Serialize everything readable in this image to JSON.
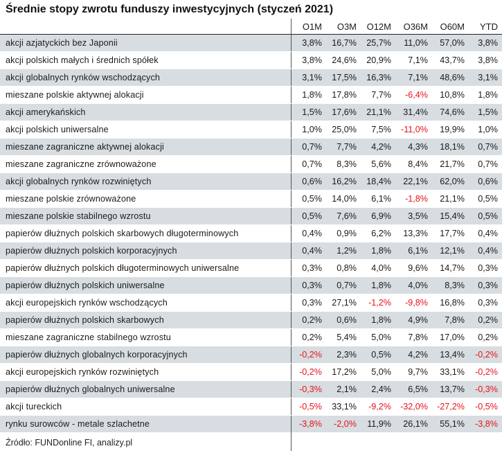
{
  "title": "Średnie stopy zwrotu funduszy inwestycyjnych (styczeń 2021)",
  "source": "Źródło: FUNDonline FI, analizy.pl",
  "colors": {
    "row_shade": "#d7dde1",
    "negative": "#e8131b",
    "text": "#1a1a1a"
  },
  "chart_data": {
    "type": "table",
    "title": "Średnie stopy zwrotu funduszy inwestycyjnych (styczeń 2021)",
    "columns": [
      "",
      "O1M",
      "O3M",
      "O12M",
      "O36M",
      "O60M",
      "YTD"
    ],
    "rows": [
      {
        "name": "akcji azjatyckich bez Japonii",
        "values": [
          "3,8%",
          "16,7%",
          "25,7%",
          "11,0%",
          "57,0%",
          "3,8%"
        ]
      },
      {
        "name": "akcji polskich małych i średnich spółek",
        "values": [
          "3,8%",
          "24,6%",
          "20,9%",
          "7,1%",
          "43,7%",
          "3,8%"
        ]
      },
      {
        "name": "akcji globalnych rynków wschodzących",
        "values": [
          "3,1%",
          "17,5%",
          "16,3%",
          "7,1%",
          "48,6%",
          "3,1%"
        ]
      },
      {
        "name": "mieszane polskie aktywnej alokacji",
        "values": [
          "1,8%",
          "17,8%",
          "7,7%",
          "-6,4%",
          "10,8%",
          "1,8%"
        ]
      },
      {
        "name": "akcji amerykańskich",
        "values": [
          "1,5%",
          "17,6%",
          "21,1%",
          "31,4%",
          "74,6%",
          "1,5%"
        ]
      },
      {
        "name": "akcji polskich uniwersalne",
        "values": [
          "1,0%",
          "25,0%",
          "7,5%",
          "-11,0%",
          "19,9%",
          "1,0%"
        ]
      },
      {
        "name": "mieszane zagraniczne aktywnej alokacji",
        "values": [
          "0,7%",
          "7,7%",
          "4,2%",
          "4,3%",
          "18,1%",
          "0,7%"
        ]
      },
      {
        "name": "mieszane zagraniczne zrównoważone",
        "values": [
          "0,7%",
          "8,3%",
          "5,6%",
          "8,4%",
          "21,7%",
          "0,7%"
        ]
      },
      {
        "name": "akcji globalnych rynków rozwiniętych",
        "values": [
          "0,6%",
          "16,2%",
          "18,4%",
          "22,1%",
          "62,0%",
          "0,6%"
        ]
      },
      {
        "name": "mieszane polskie zrównoważone",
        "values": [
          "0,5%",
          "14,0%",
          "6,1%",
          "-1,8%",
          "21,1%",
          "0,5%"
        ]
      },
      {
        "name": "mieszane polskie stabilnego wzrostu",
        "values": [
          "0,5%",
          "7,6%",
          "6,9%",
          "3,5%",
          "15,4%",
          "0,5%"
        ]
      },
      {
        "name": "papierów dłużnych polskich skarbowych długoterminowych",
        "values": [
          "0,4%",
          "0,9%",
          "6,2%",
          "13,3%",
          "17,7%",
          "0,4%"
        ]
      },
      {
        "name": "papierów dłużnych polskich korporacyjnych",
        "values": [
          "0,4%",
          "1,2%",
          "1,8%",
          "6,1%",
          "12,1%",
          "0,4%"
        ]
      },
      {
        "name": "papierów dłużnych polskich długoterminowych uniwersalne",
        "values": [
          "0,3%",
          "0,8%",
          "4,0%",
          "9,6%",
          "14,7%",
          "0,3%"
        ]
      },
      {
        "name": "papierów dłużnych polskich uniwersalne",
        "values": [
          "0,3%",
          "0,7%",
          "1,8%",
          "4,0%",
          "8,3%",
          "0,3%"
        ]
      },
      {
        "name": "akcji europejskich rynków wschodzących",
        "values": [
          "0,3%",
          "27,1%",
          "-1,2%",
          "-9,8%",
          "16,8%",
          "0,3%"
        ]
      },
      {
        "name": "papierów dłużnych polskich skarbowych",
        "values": [
          "0,2%",
          "0,6%",
          "1,8%",
          "4,9%",
          "7,8%",
          "0,2%"
        ]
      },
      {
        "name": "mieszane zagraniczne stabilnego wzrostu",
        "values": [
          "0,2%",
          "5,4%",
          "5,0%",
          "7,8%",
          "17,0%",
          "0,2%"
        ]
      },
      {
        "name": "papierów dłużnych globalnych korporacyjnych",
        "values": [
          "-0,2%",
          "2,3%",
          "0,5%",
          "4,2%",
          "13,4%",
          "-0,2%"
        ]
      },
      {
        "name": "akcji europejskich rynków rozwiniętych",
        "values": [
          "-0,2%",
          "17,2%",
          "5,0%",
          "9,7%",
          "33,1%",
          "-0,2%"
        ]
      },
      {
        "name": "papierów dłużnych globalnych uniwersalne",
        "values": [
          "-0,3%",
          "2,1%",
          "2,4%",
          "6,5%",
          "13,7%",
          "-0,3%"
        ]
      },
      {
        "name": "akcji tureckich",
        "values": [
          "-0,5%",
          "33,1%",
          "-9,2%",
          "-32,0%",
          "-27,2%",
          "-0,5%"
        ]
      },
      {
        "name": "rynku surowców - metale szlachetne",
        "values": [
          "-3,8%",
          "-2,0%",
          "11,9%",
          "26,1%",
          "55,1%",
          "-3,8%"
        ]
      }
    ]
  }
}
